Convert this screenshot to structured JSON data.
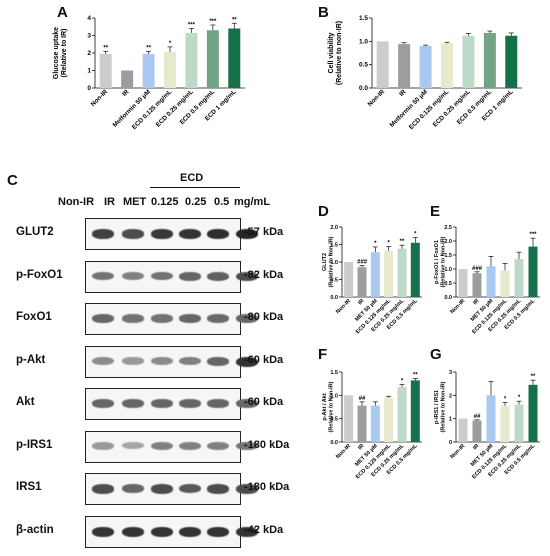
{
  "colors": {
    "non_ir": "#cccccc",
    "ir": "#9d9da1",
    "met": "#a9c9f1",
    "ecd_low": "#e6e9cc",
    "ecd_mid1": "#bfd9c8",
    "ecd_mid2": "#72a488",
    "ecd_high": "#16714a"
  },
  "panel_letters": {
    "a": "A",
    "b": "B",
    "c": "C",
    "d": "D",
    "e": "E",
    "f": "F",
    "g": "G"
  },
  "blot": {
    "lanes": [
      "Non-IR",
      "IR",
      "MET",
      "0.125",
      "0.25",
      "0.5"
    ],
    "group_label": "ECD",
    "unit": "mg/mL",
    "rows": [
      {
        "protein": "GLUT2",
        "kda": "-57 kDa",
        "intensity": [
          0.75,
          0.7,
          0.78,
          0.8,
          0.82,
          0.85
        ]
      },
      {
        "protein": "p-FoxO1",
        "kda": "-82 kDa",
        "intensity": [
          0.55,
          0.5,
          0.55,
          0.6,
          0.62,
          0.7
        ]
      },
      {
        "protein": "FoxO1",
        "kda": "-80 kDa",
        "intensity": [
          0.6,
          0.55,
          0.55,
          0.6,
          0.58,
          0.6
        ]
      },
      {
        "protein": "p-Akt",
        "kda": "-60 kDa",
        "intensity": [
          0.45,
          0.4,
          0.45,
          0.5,
          0.6,
          0.8
        ]
      },
      {
        "protein": "Akt",
        "kda": "-60 kDa",
        "intensity": [
          0.6,
          0.6,
          0.6,
          0.6,
          0.6,
          0.6
        ]
      },
      {
        "protein": "p-IRS1",
        "kda": "-180 kDa",
        "intensity": [
          0.4,
          0.35,
          0.5,
          0.5,
          0.5,
          0.55
        ]
      },
      {
        "protein": "IRS1",
        "kda": "-180 kDa",
        "intensity": [
          0.7,
          0.6,
          0.7,
          0.65,
          0.7,
          0.7
        ]
      },
      {
        "protein": "β-actin",
        "kda": "-42 kDa",
        "intensity": [
          0.8,
          0.8,
          0.8,
          0.8,
          0.8,
          0.8
        ]
      }
    ]
  },
  "chart_data": [
    {
      "panel": "A",
      "type": "bar",
      "ylabel": "Glucose uptake\n(Relative to IR)",
      "ylim": [
        0,
        4
      ],
      "yticks": [
        0,
        1,
        2,
        3,
        4
      ],
      "categories": [
        "Non-IR",
        "IR",
        "Metformin 50 μM",
        "ECD 0.125 mg/mL",
        "ECD 0.25 mg/mL",
        "ECD 0.5 mg/mL",
        "ECD 1 mg/mL"
      ],
      "values": [
        1.95,
        1.0,
        1.95,
        2.05,
        3.15,
        3.3,
        3.4
      ],
      "errors": [
        0.15,
        0,
        0.15,
        0.3,
        0.25,
        0.3,
        0.3
      ],
      "annotations": [
        "**",
        "",
        "**",
        "*",
        "***",
        "***",
        "**"
      ],
      "colors": [
        "non_ir",
        "ir",
        "met",
        "ecd_low",
        "ecd_mid1",
        "ecd_mid2",
        "ecd_high"
      ]
    },
    {
      "panel": "B",
      "type": "bar",
      "ylabel": "Cell viability\n(Relative to non-IR)",
      "ylim": [
        0,
        1.5
      ],
      "yticks": [
        0.0,
        0.5,
        1.0,
        1.5
      ],
      "categories": [
        "Non-IR",
        "IR",
        "Metformin 50 μM",
        "ECD 0.125 mg/mL",
        "ECD 0.25 mg/mL",
        "ECD 0.5 mg/mL",
        "ECD 1 mg/mL"
      ],
      "values": [
        1.0,
        0.94,
        0.9,
        0.96,
        1.12,
        1.18,
        1.12
      ],
      "errors": [
        0,
        0.03,
        0.02,
        0.02,
        0.05,
        0.04,
        0.06
      ],
      "annotations": [
        "",
        "",
        "",
        "",
        "",
        "",
        ""
      ],
      "colors": [
        "non_ir",
        "ir",
        "met",
        "ecd_low",
        "ecd_mid1",
        "ecd_mid2",
        "ecd_high"
      ]
    },
    {
      "panel": "D",
      "type": "bar",
      "ylabel": "GLUT2\n(Relative to Non-IR)",
      "ylim": [
        0,
        2.0
      ],
      "yticks": [
        0.0,
        0.5,
        1.0,
        1.5,
        2.0
      ],
      "categories": [
        "Non-IR",
        "IR",
        "MET 50 μM",
        "ECD 0.125 mg/mL",
        "ECD 0.25 mg/mL",
        "ECD 0.5 mg/mL"
      ],
      "values": [
        1.0,
        0.85,
        1.28,
        1.32,
        1.38,
        1.55
      ],
      "errors": [
        0,
        0.05,
        0.15,
        0.12,
        0.1,
        0.15
      ],
      "annotations": [
        "",
        "###",
        "*",
        "*",
        "**",
        "*"
      ],
      "colors": [
        "non_ir",
        "ir",
        "met",
        "ecd_low",
        "ecd_mid1",
        "ecd_high"
      ]
    },
    {
      "panel": "E",
      "type": "bar",
      "ylabel": "p-FoxO1 / FoxO1\n(Relative to Non-IR)",
      "ylim": [
        0,
        2.5
      ],
      "yticks": [
        0.0,
        0.5,
        1.0,
        1.5,
        2.0,
        2.5
      ],
      "categories": [
        "Non-IR",
        "IR",
        "MET 50 μM",
        "ECD 0.125 mg/mL",
        "ECD 0.25 mg/mL",
        "ECD 0.5 mg/mL"
      ],
      "values": [
        1.0,
        0.85,
        1.1,
        0.95,
        1.35,
        1.8
      ],
      "errors": [
        0,
        0.05,
        0.35,
        0.25,
        0.25,
        0.3
      ],
      "annotations": [
        "",
        "###",
        "",
        "",
        "",
        "***"
      ],
      "colors": [
        "non_ir",
        "ir",
        "met",
        "ecd_low",
        "ecd_mid1",
        "ecd_high"
      ]
    },
    {
      "panel": "F",
      "type": "bar",
      "ylabel": "p-Akt / Akt\n(Relative to Non-IR)",
      "ylim": [
        0,
        1.5
      ],
      "yticks": [
        0.0,
        0.5,
        1.0,
        1.5
      ],
      "categories": [
        "Non-IR",
        "IR",
        "MET 50 μM",
        "ECD 0.125 mg/mL",
        "ECD 0.25 mg/mL",
        "ECD 0.5 mg/mL"
      ],
      "values": [
        1.0,
        0.78,
        0.78,
        0.95,
        1.18,
        1.32
      ],
      "errors": [
        0,
        0.08,
        0.08,
        0.03,
        0.05,
        0.04
      ],
      "annotations": [
        "",
        "##",
        "",
        "",
        "*",
        "**"
      ],
      "colors": [
        "non_ir",
        "ir",
        "met",
        "ecd_low",
        "ecd_mid1",
        "ecd_high"
      ]
    },
    {
      "panel": "G",
      "type": "bar",
      "ylabel": "p-IRS1 / IRS1\n(Relative to Non-IR)",
      "ylim": [
        0,
        3
      ],
      "yticks": [
        0,
        1,
        2,
        3
      ],
      "categories": [
        "Non-IR",
        "IR",
        "MET 50 μM",
        "ECD 0.125 mg/mL",
        "ECD 0.25 mg/mL",
        "ECD 0.5 mg/mL"
      ],
      "values": [
        1.0,
        0.92,
        2.0,
        1.55,
        1.6,
        2.45
      ],
      "errors": [
        0,
        0.03,
        0.6,
        0.15,
        0.15,
        0.2
      ],
      "annotations": [
        "",
        "##",
        "",
        "*",
        "*",
        "**"
      ],
      "colors": [
        "non_ir",
        "ir",
        "met",
        "ecd_low",
        "ecd_mid1",
        "ecd_high"
      ]
    }
  ]
}
